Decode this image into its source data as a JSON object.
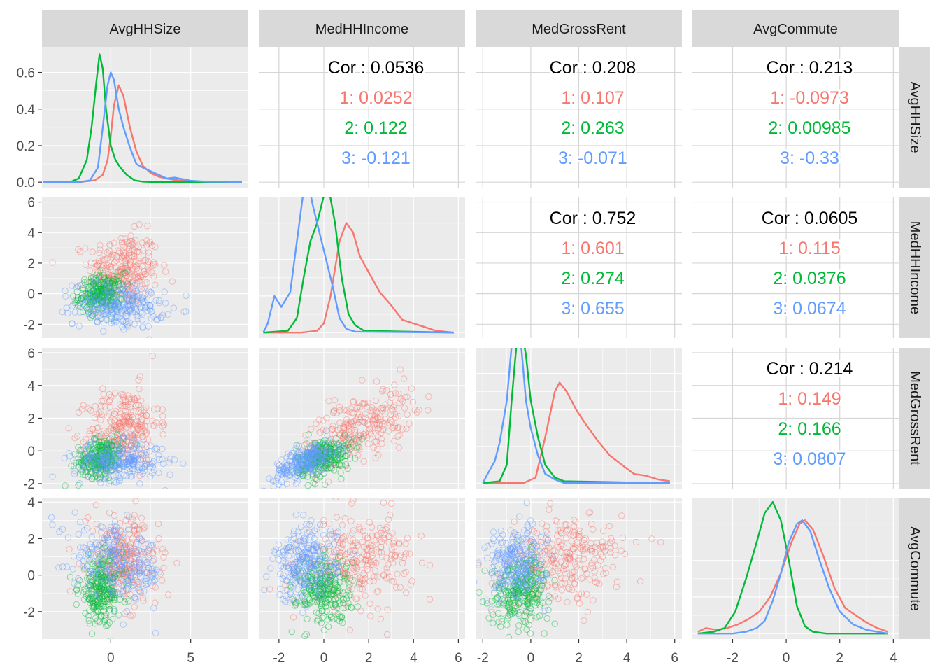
{
  "colors": {
    "g1": "#F8766D",
    "g2": "#00BA38",
    "g3": "#619CFF",
    "panel_bg": "#EBEBEB",
    "strip_bg": "#D9D9D9",
    "grid": "#FFFFFF",
    "text": "#000000",
    "axis_text": "#4D4D4D"
  },
  "chart_data": {
    "type": "scatter",
    "layout": "pairs-matrix",
    "variables": [
      "AvgHHSize",
      "MedHHIncome",
      "MedGrossRent",
      "AvgCommute"
    ],
    "groups": [
      "1",
      "2",
      "3"
    ],
    "axes": {
      "AvgHHSize": {
        "range": [
          -4.3,
          8.6
        ],
        "ticks": [
          0,
          5
        ],
        "tick_labels": [
          "0",
          "5"
        ]
      },
      "MedHHIncome": {
        "range": [
          -2.9,
          6.3
        ],
        "ticks": [
          -2,
          0,
          2,
          4,
          6
        ],
        "tick_labels": [
          "-2",
          "0",
          "2",
          "4",
          "6"
        ]
      },
      "MedGrossRent": {
        "range": [
          -2.3,
          6.3
        ],
        "ticks": [
          -2,
          0,
          2,
          4,
          6
        ],
        "tick_labels": [
          "-2",
          "0",
          "2",
          "4",
          "6"
        ]
      },
      "AvgCommute": {
        "range": [
          -3.5,
          4.2
        ],
        "ticks": [
          -2,
          0,
          2,
          4
        ],
        "tick_labels": [
          "-2",
          "0",
          "2",
          "4"
        ]
      }
    },
    "density_axis": {
      "range": [
        -0.03,
        0.74
      ],
      "ticks": [
        0.0,
        0.2,
        0.4,
        0.6
      ],
      "tick_labels": [
        "0.0",
        "0.2",
        "0.4",
        "0.6"
      ]
    },
    "correlations": [
      {
        "row": "AvgHHSize",
        "col": "MedHHIncome",
        "overall": "Cor : 0.0536",
        "groups": [
          "1: 0.0252",
          "2: 0.122",
          "3: -0.121"
        ]
      },
      {
        "row": "AvgHHSize",
        "col": "MedGrossRent",
        "overall": "Cor : 0.208",
        "groups": [
          "1: 0.107",
          "2: 0.263",
          "3: -0.071"
        ]
      },
      {
        "row": "AvgHHSize",
        "col": "AvgCommute",
        "overall": "Cor : 0.213",
        "groups": [
          "1: -0.0973",
          "2: 0.00985",
          "3: -0.33"
        ]
      },
      {
        "row": "MedHHIncome",
        "col": "MedGrossRent",
        "overall": "Cor : 0.752",
        "groups": [
          "1: 0.601",
          "2: 0.274",
          "3: 0.655"
        ]
      },
      {
        "row": "MedHHIncome",
        "col": "AvgCommute",
        "overall": "Cor : 0.0605",
        "groups": [
          "1: 0.115",
          "2: 0.0376",
          "3: 0.0674"
        ]
      },
      {
        "row": "MedGrossRent",
        "col": "AvgCommute",
        "overall": "Cor : 0.214",
        "groups": [
          "1: 0.149",
          "2: 0.166",
          "3: 0.0807"
        ]
      }
    ],
    "densities": {
      "AvgHHSize": {
        "1": [
          [
            -4.2,
            0
          ],
          [
            -2,
            0
          ],
          [
            -1,
            0.01
          ],
          [
            -0.5,
            0.04
          ],
          [
            -0.2,
            0.12
          ],
          [
            0,
            0.25
          ],
          [
            0.2,
            0.42
          ],
          [
            0.5,
            0.53
          ],
          [
            0.8,
            0.47
          ],
          [
            1.2,
            0.3
          ],
          [
            1.6,
            0.17
          ],
          [
            2,
            0.09
          ],
          [
            2.5,
            0.05
          ],
          [
            3,
            0.03
          ],
          [
            3.5,
            0.02
          ],
          [
            4,
            0.012
          ],
          [
            5,
            0.005
          ],
          [
            6,
            0.002
          ],
          [
            8.2,
            0
          ]
        ],
        "2": [
          [
            -4.2,
            0
          ],
          [
            -2.5,
            0.002
          ],
          [
            -2,
            0.02
          ],
          [
            -1.5,
            0.12
          ],
          [
            -1.2,
            0.3
          ],
          [
            -0.9,
            0.55
          ],
          [
            -0.7,
            0.7
          ],
          [
            -0.5,
            0.62
          ],
          [
            -0.3,
            0.4
          ],
          [
            0,
            0.2
          ],
          [
            0.3,
            0.12
          ],
          [
            0.6,
            0.08
          ],
          [
            1,
            0.04
          ],
          [
            1.5,
            0.01
          ],
          [
            2,
            0.003
          ],
          [
            3,
            0
          ],
          [
            8.2,
            0
          ]
        ],
        "3": [
          [
            -4.2,
            0
          ],
          [
            -2,
            0
          ],
          [
            -1.3,
            0.01
          ],
          [
            -0.8,
            0.08
          ],
          [
            -0.5,
            0.3
          ],
          [
            -0.2,
            0.53
          ],
          [
            0,
            0.6
          ],
          [
            0.2,
            0.56
          ],
          [
            0.5,
            0.4
          ],
          [
            0.8,
            0.3
          ],
          [
            1.2,
            0.19
          ],
          [
            1.6,
            0.1
          ],
          [
            2,
            0.08
          ],
          [
            2.5,
            0.06
          ],
          [
            3,
            0.04
          ],
          [
            3.5,
            0.02
          ],
          [
            4,
            0.025
          ],
          [
            5,
            0.008
          ],
          [
            6,
            0.003
          ],
          [
            7,
            0.002
          ],
          [
            8.2,
            0
          ]
        ]
      },
      "MedHHIncome": {
        "1": [
          [
            -2.7,
            0
          ],
          [
            -1,
            0
          ],
          [
            -0.3,
            0.01
          ],
          [
            0,
            0.05
          ],
          [
            0.3,
            0.2
          ],
          [
            0.7,
            0.5
          ],
          [
            1,
            0.6
          ],
          [
            1.3,
            0.55
          ],
          [
            1.6,
            0.42
          ],
          [
            2,
            0.33
          ],
          [
            2.5,
            0.22
          ],
          [
            3,
            0.15
          ],
          [
            3.5,
            0.07
          ],
          [
            4,
            0.05
          ],
          [
            4.5,
            0.03
          ],
          [
            5,
            0.01
          ],
          [
            5.8,
            0
          ]
        ],
        "2": [
          [
            -2.7,
            0
          ],
          [
            -1.6,
            0.01
          ],
          [
            -1.2,
            0.08
          ],
          [
            -0.9,
            0.3
          ],
          [
            -0.6,
            0.5
          ],
          [
            -0.3,
            0.6
          ],
          [
            0,
            0.75
          ],
          [
            0.2,
            0.8
          ],
          [
            0.5,
            0.6
          ],
          [
            0.8,
            0.3
          ],
          [
            1.1,
            0.1
          ],
          [
            1.4,
            0.04
          ],
          [
            1.8,
            0.01
          ],
          [
            5.8,
            0
          ]
        ],
        "3": [
          [
            -2.7,
            0
          ],
          [
            -2.5,
            0.05
          ],
          [
            -2.2,
            0.2
          ],
          [
            -1.9,
            0.14
          ],
          [
            -1.5,
            0.22
          ],
          [
            -1.2,
            0.5
          ],
          [
            -0.9,
            0.78
          ],
          [
            -0.7,
            0.83
          ],
          [
            -0.5,
            0.7
          ],
          [
            -0.2,
            0.55
          ],
          [
            0.1,
            0.4
          ],
          [
            0.4,
            0.25
          ],
          [
            0.7,
            0.08
          ],
          [
            1,
            0.02
          ],
          [
            1.4,
            0.005
          ],
          [
            5.8,
            0
          ]
        ]
      },
      "MedGrossRent": {
        "1": [
          [
            -2,
            0
          ],
          [
            -0.3,
            0
          ],
          [
            0.2,
            0.03
          ],
          [
            0.6,
            0.25
          ],
          [
            1,
            0.5
          ],
          [
            1.2,
            0.55
          ],
          [
            1.5,
            0.5
          ],
          [
            1.9,
            0.4
          ],
          [
            2.3,
            0.32
          ],
          [
            2.8,
            0.23
          ],
          [
            3.3,
            0.15
          ],
          [
            3.8,
            0.1
          ],
          [
            4.3,
            0.05
          ],
          [
            4.8,
            0.04
          ],
          [
            5.3,
            0.02
          ],
          [
            5.8,
            0.01
          ]
        ],
        "2": [
          [
            -2,
            0
          ],
          [
            -1.3,
            0.01
          ],
          [
            -1,
            0.1
          ],
          [
            -0.8,
            0.45
          ],
          [
            -0.6,
            0.75
          ],
          [
            -0.4,
            0.85
          ],
          [
            -0.2,
            0.7
          ],
          [
            0,
            0.45
          ],
          [
            0.3,
            0.25
          ],
          [
            0.6,
            0.1
          ],
          [
            1,
            0.03
          ],
          [
            1.4,
            0.01
          ],
          [
            5.8,
            0
          ]
        ],
        "3": [
          [
            -2,
            0
          ],
          [
            -1.8,
            0.05
          ],
          [
            -1.5,
            0.12
          ],
          [
            -1.3,
            0.22
          ],
          [
            -1,
            0.45
          ],
          [
            -0.8,
            0.75
          ],
          [
            -0.6,
            0.87
          ],
          [
            -0.4,
            0.75
          ],
          [
            -0.2,
            0.45
          ],
          [
            0,
            0.3
          ],
          [
            0.3,
            0.15
          ],
          [
            0.6,
            0.05
          ],
          [
            1,
            0.02
          ],
          [
            1.4,
            0
          ],
          [
            5.8,
            0
          ]
        ]
      },
      "AvgCommute": {
        "1": [
          [
            -3.3,
            0.01
          ],
          [
            -3,
            0.03
          ],
          [
            -2.6,
            0.02
          ],
          [
            -2.2,
            0.03
          ],
          [
            -1.8,
            0.05
          ],
          [
            -1.4,
            0.08
          ],
          [
            -1,
            0.12
          ],
          [
            -0.6,
            0.2
          ],
          [
            -0.2,
            0.33
          ],
          [
            0.2,
            0.5
          ],
          [
            0.5,
            0.6
          ],
          [
            0.7,
            0.62
          ],
          [
            1,
            0.57
          ],
          [
            1.4,
            0.42
          ],
          [
            1.8,
            0.25
          ],
          [
            2.2,
            0.14
          ],
          [
            2.6,
            0.1
          ],
          [
            3,
            0.06
          ],
          [
            3.4,
            0.03
          ],
          [
            3.8,
            0.01
          ]
        ],
        "2": [
          [
            -3.3,
            0
          ],
          [
            -2.7,
            0.01
          ],
          [
            -2.3,
            0.03
          ],
          [
            -1.9,
            0.12
          ],
          [
            -1.5,
            0.3
          ],
          [
            -1.1,
            0.5
          ],
          [
            -0.8,
            0.66
          ],
          [
            -0.5,
            0.72
          ],
          [
            -0.2,
            0.62
          ],
          [
            0.1,
            0.4
          ],
          [
            0.4,
            0.15
          ],
          [
            0.7,
            0.04
          ],
          [
            1,
            0.01
          ],
          [
            1.5,
            0
          ],
          [
            3.8,
            0
          ]
        ],
        "3": [
          [
            -3.3,
            0
          ],
          [
            -2,
            0
          ],
          [
            -1.5,
            0.01
          ],
          [
            -1.1,
            0.03
          ],
          [
            -0.8,
            0.07
          ],
          [
            -0.5,
            0.18
          ],
          [
            -0.2,
            0.33
          ],
          [
            0.1,
            0.5
          ],
          [
            0.4,
            0.6
          ],
          [
            0.6,
            0.62
          ],
          [
            0.9,
            0.56
          ],
          [
            1.2,
            0.42
          ],
          [
            1.6,
            0.25
          ],
          [
            2,
            0.12
          ],
          [
            2.5,
            0.05
          ],
          [
            3,
            0.02
          ],
          [
            3.8,
            0
          ]
        ]
      }
    },
    "scatter_clusters": {
      "1": {
        "AvgHHSize": [
          0.8,
          1.1
        ],
        "MedHHIncome": [
          1.6,
          1.2
        ],
        "MedGrossRent": [
          1.5,
          1.2
        ],
        "AvgCommute": [
          0.8,
          1.2
        ]
      },
      "2": {
        "AvgHHSize": [
          -0.6,
          0.7
        ],
        "MedHHIncome": [
          0.0,
          0.6
        ],
        "MedGrossRent": [
          -0.4,
          0.6
        ],
        "AvgCommute": [
          -0.8,
          0.9
        ]
      },
      "3": {
        "AvgHHSize": [
          0.5,
          1.4
        ],
        "MedHHIncome": [
          -0.8,
          0.7
        ],
        "MedGrossRent": [
          -0.6,
          0.6
        ],
        "AvgCommute": [
          0.6,
          1.0
        ]
      }
    },
    "points_per_group": 260,
    "grid": true,
    "legend": "none"
  }
}
